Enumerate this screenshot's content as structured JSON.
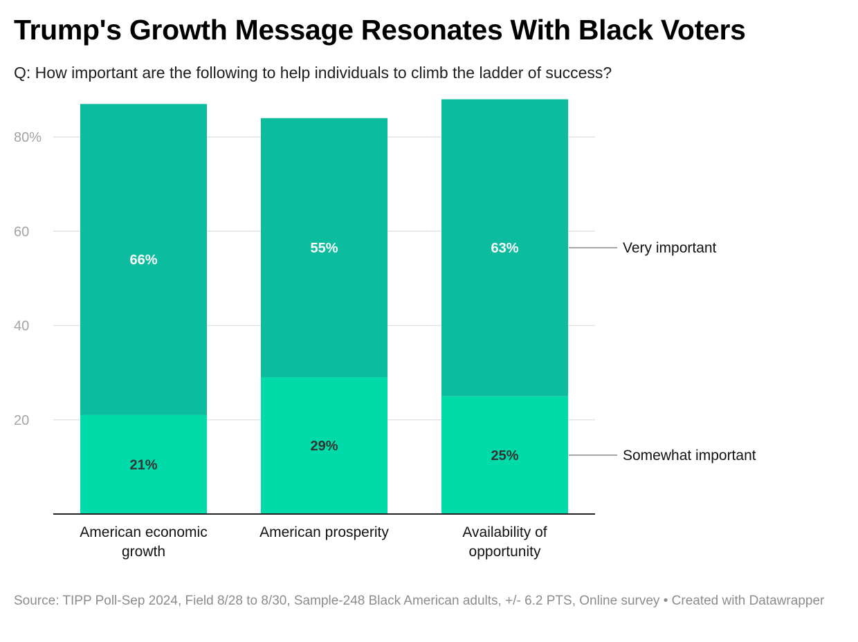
{
  "header": {
    "title": "Trump's Growth Message Resonates With Black Voters",
    "subtitle": "Q: How important are the following to help individuals to climb the ladder of success?"
  },
  "footer": {
    "source": "Source: TIPP Poll-Sep 2024, Field 8/28 to 8/30, Sample-248 Black American adults, +/- 6.2 PTS, Online survey • Created with Datawrapper"
  },
  "chart_data": {
    "type": "bar",
    "stacked": true,
    "categories": [
      [
        "American economic",
        "growth"
      ],
      [
        "American prosperity"
      ],
      [
        "Availability of",
        "opportunity"
      ]
    ],
    "series": [
      {
        "name": "Somewhat important",
        "values": [
          21,
          29,
          25
        ],
        "labels": [
          "21%",
          "29%",
          "25%"
        ],
        "color": "#00dba9"
      },
      {
        "name": "Very important",
        "values": [
          66,
          55,
          63
        ],
        "labels": [
          "66%",
          "55%",
          "63%"
        ],
        "color": "#0bbc9f"
      }
    ],
    "yticks": [
      {
        "value": 20,
        "label": "20"
      },
      {
        "value": 40,
        "label": "40"
      },
      {
        "value": 60,
        "label": "60"
      },
      {
        "value": 80,
        "label": "80%"
      }
    ],
    "ylim": [
      0,
      88
    ],
    "legend_position": "right, inline with series"
  }
}
